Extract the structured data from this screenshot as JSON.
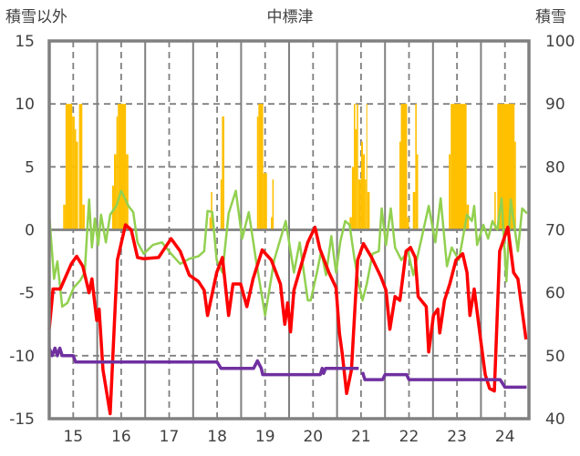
{
  "chart_data": {
    "type": "line",
    "title": "中標津",
    "ylabel": "積雪以外",
    "y2label": "積雪",
    "xlim": [
      14.5,
      24.5
    ],
    "ylim": [
      -15,
      15
    ],
    "y2lim": [
      40,
      100
    ],
    "x_ticks": [
      15,
      16,
      17,
      18,
      19,
      20,
      21,
      22,
      23,
      24
    ],
    "x_tick_labels": [
      "15",
      "16",
      "17",
      "18",
      "19",
      "20",
      "21",
      "22",
      "23",
      "24"
    ],
    "y_ticks": [
      15,
      10,
      5,
      0,
      -5,
      -10,
      -15
    ],
    "y_tick_labels": [
      "15",
      "10",
      "5",
      "0",
      "-5",
      "-10",
      "-15"
    ],
    "y2_ticks": [
      100,
      90,
      80,
      70,
      60,
      50,
      40
    ],
    "y2_tick_labels": [
      "100",
      "90",
      "80",
      "70",
      "60",
      "50",
      "40"
    ],
    "grid": true,
    "colors": {
      "snow": "#FFC000",
      "red": "#FF0000",
      "green": "#92D050",
      "purple": "#7030A0",
      "axis": "#808080"
    },
    "snow_bars_y2": {
      "name": "積雪",
      "baseline": 70,
      "runs": [
        [
          14.79,
          14.84,
          74
        ],
        [
          14.84,
          14.98,
          90
        ],
        [
          14.98,
          15.03,
          88
        ],
        [
          15.03,
          15.06,
          86
        ],
        [
          15.06,
          15.1,
          84
        ],
        [
          15.12,
          15.19,
          90
        ],
        [
          15.19,
          15.24,
          74
        ],
        [
          15.81,
          15.85,
          77
        ],
        [
          15.85,
          15.9,
          82
        ],
        [
          15.9,
          15.93,
          88
        ],
        [
          15.93,
          16.1,
          90
        ],
        [
          16.1,
          16.15,
          82
        ],
        [
          17.84,
          17.87,
          72
        ],
        [
          17.87,
          17.9,
          76
        ],
        [
          18.07,
          18.1,
          78
        ],
        [
          18.1,
          18.15,
          88
        ],
        [
          18.83,
          18.86,
          88
        ],
        [
          18.86,
          18.96,
          90
        ],
        [
          18.96,
          19.04,
          79
        ],
        [
          19.12,
          19.15,
          72
        ],
        [
          19.15,
          19.18,
          78
        ],
        [
          20.76,
          20.81,
          72
        ],
        [
          20.81,
          20.85,
          80
        ],
        [
          20.85,
          20.88,
          90
        ],
        [
          20.88,
          20.91,
          86
        ],
        [
          20.91,
          20.94,
          90
        ],
        [
          20.94,
          21.0,
          78
        ],
        [
          21.0,
          21.04,
          84
        ],
        [
          21.04,
          21.08,
          82
        ],
        [
          21.08,
          21.11,
          78
        ],
        [
          21.11,
          21.13,
          90
        ],
        [
          21.13,
          21.18,
          76
        ],
        [
          21.8,
          21.83,
          84
        ],
        [
          21.83,
          21.96,
          90
        ],
        [
          21.96,
          22.0,
          72
        ],
        [
          22.08,
          22.13,
          76
        ],
        [
          22.13,
          22.16,
          90
        ],
        [
          22.16,
          22.19,
          82
        ],
        [
          22.83,
          22.87,
          82
        ],
        [
          22.87,
          23.2,
          90
        ],
        [
          23.2,
          23.25,
          74
        ],
        [
          23.78,
          23.81,
          76
        ],
        [
          23.84,
          24.2,
          90
        ],
        [
          24.2,
          24.23,
          84
        ]
      ]
    },
    "series": [
      {
        "name": "red",
        "color_key": "red",
        "segments": [
          [
            [
              14.5,
              -7.9
            ],
            [
              14.58,
              -4.7
            ],
            [
              14.73,
              -4.7
            ],
            [
              14.96,
              -2.7
            ],
            [
              15.07,
              -2.1
            ],
            [
              15.2,
              -2.9
            ],
            [
              15.33,
              -5.0
            ],
            [
              15.39,
              -3.9
            ],
            [
              15.49,
              -7.2
            ],
            [
              15.54,
              -6.3
            ],
            [
              15.62,
              -11.1
            ],
            [
              15.77,
              -14.6
            ],
            [
              15.92,
              -2.4
            ],
            [
              16.09,
              0.4
            ],
            [
              16.21,
              0
            ],
            [
              16.34,
              -2.2
            ],
            [
              16.47,
              -2.3
            ],
            [
              16.78,
              -2.2
            ],
            [
              17.04,
              -0.7
            ],
            [
              17.23,
              -1.7
            ],
            [
              17.42,
              -3.6
            ],
            [
              17.61,
              -4.1
            ],
            [
              17.73,
              -4.8
            ],
            [
              17.8,
              -6.8
            ],
            [
              17.99,
              -3.4
            ],
            [
              18.11,
              -2.2
            ],
            [
              18.24,
              -6.8
            ],
            [
              18.33,
              -4.3
            ],
            [
              18.49,
              -4.3
            ],
            [
              18.62,
              -6.1
            ],
            [
              18.75,
              -3.9
            ],
            [
              18.94,
              -1.6
            ],
            [
              19.13,
              -2.4
            ],
            [
              19.32,
              -4.3
            ],
            [
              19.41,
              -7.5
            ],
            [
              19.47,
              -5.8
            ],
            [
              19.53,
              -8.1
            ],
            [
              19.6,
              -4.8
            ],
            [
              19.89,
              -1.0
            ],
            [
              20.04,
              0.2
            ],
            [
              20.14,
              -1.5
            ],
            [
              20.33,
              -3.4
            ],
            [
              20.48,
              -4.6
            ],
            [
              20.55,
              -8.2
            ],
            [
              20.61,
              -9.9
            ],
            [
              20.7,
              -13.0
            ],
            [
              20.8,
              -11.1
            ],
            [
              20.93,
              -2.4
            ],
            [
              21.05,
              -1.1
            ],
            [
              21.22,
              -2.2
            ],
            [
              21.41,
              -3.7
            ],
            [
              21.52,
              -4.8
            ],
            [
              21.6,
              -7.9
            ],
            [
              21.71,
              -5.3
            ],
            [
              21.81,
              -5.6
            ],
            [
              21.94,
              -1.7
            ],
            [
              22.03,
              -1.4
            ],
            [
              22.13,
              -2.2
            ],
            [
              22.19,
              -5.3
            ],
            [
              22.36,
              -6.1
            ],
            [
              22.41,
              -9.7
            ],
            [
              22.51,
              -6.8
            ],
            [
              22.6,
              -6.3
            ],
            [
              22.64,
              -8.2
            ],
            [
              22.74,
              -5.6
            ],
            [
              22.85,
              -4.3
            ],
            [
              22.98,
              -2.4
            ],
            [
              23.12,
              -1.9
            ],
            [
              23.21,
              -3.4
            ],
            [
              23.27,
              -6.8
            ],
            [
              23.36,
              -4.7
            ],
            [
              23.51,
              -9.2
            ],
            [
              23.59,
              -11.5
            ],
            [
              23.68,
              -12.6
            ],
            [
              23.78,
              -12.8
            ],
            [
              23.89,
              -1.7
            ],
            [
              24.06,
              0.2
            ],
            [
              24.18,
              -3.4
            ],
            [
              24.27,
              -3.9
            ],
            [
              24.44,
              -8.7
            ]
          ]
        ]
      },
      {
        "name": "green",
        "color_key": "green",
        "segments": [
          [
            [
              14.5,
              1.2
            ],
            [
              14.6,
              -3.9
            ],
            [
              14.67,
              -2.5
            ],
            [
              14.77,
              -6.1
            ],
            [
              14.88,
              -5.8
            ],
            [
              15.01,
              -4.6
            ],
            [
              15.15,
              -4.0
            ],
            [
              15.24,
              -3.4
            ],
            [
              15.33,
              2.4
            ],
            [
              15.39,
              -1.4
            ],
            [
              15.45,
              0.9
            ],
            [
              15.52,
              -1.2
            ],
            [
              15.58,
              1.2
            ],
            [
              15.68,
              -1.0
            ],
            [
              15.77,
              1.2
            ],
            [
              15.9,
              1.9
            ],
            [
              16.0,
              3.1
            ],
            [
              16.15,
              1.9
            ],
            [
              16.25,
              1.4
            ],
            [
              16.34,
              -1.0
            ],
            [
              16.47,
              -1.9
            ],
            [
              16.66,
              -1.2
            ],
            [
              16.85,
              -1.0
            ],
            [
              17.04,
              -1.9
            ],
            [
              17.23,
              -2.7
            ],
            [
              17.42,
              -2.3
            ],
            [
              17.61,
              -2.1
            ],
            [
              17.73,
              -1.7
            ],
            [
              17.8,
              1.5
            ],
            [
              17.9,
              1.4
            ],
            [
              17.99,
              -2.4
            ],
            [
              18.11,
              -3.4
            ],
            [
              18.24,
              1.3
            ],
            [
              18.39,
              3.1
            ],
            [
              18.52,
              -0.7
            ],
            [
              18.66,
              1.4
            ],
            [
              18.81,
              -2.4
            ],
            [
              19.0,
              -6.8
            ],
            [
              19.19,
              -2.4
            ],
            [
              19.43,
              0.7
            ],
            [
              19.51,
              -1.2
            ],
            [
              19.6,
              -3.4
            ],
            [
              19.72,
              -1.0
            ],
            [
              19.89,
              -5.6
            ],
            [
              19.95,
              -5.6
            ],
            [
              20.08,
              -3.4
            ],
            [
              20.17,
              -1.7
            ],
            [
              20.27,
              -3.6
            ],
            [
              20.38,
              -0.5
            ],
            [
              20.48,
              -3.4
            ],
            [
              20.57,
              -0.9
            ],
            [
              20.67,
              0.7
            ],
            [
              20.76,
              0.4
            ],
            [
              20.86,
              -2.2
            ],
            [
              20.95,
              -4.3
            ],
            [
              21.03,
              -5.6
            ],
            [
              21.12,
              -4.3
            ],
            [
              21.24,
              -1.9
            ],
            [
              21.37,
              -1.7
            ],
            [
              21.43,
              1.7
            ],
            [
              21.52,
              -1.2
            ],
            [
              21.62,
              1.7
            ],
            [
              21.71,
              -1.4
            ],
            [
              21.84,
              -2.4
            ],
            [
              21.98,
              -1.7
            ],
            [
              22.09,
              -3.6
            ],
            [
              22.26,
              -0.7
            ],
            [
              22.41,
              1.9
            ],
            [
              22.55,
              -1.0
            ],
            [
              22.66,
              2.5
            ],
            [
              22.79,
              -2.9
            ],
            [
              22.89,
              -1.4
            ],
            [
              23.04,
              -2.4
            ],
            [
              23.21,
              1.2
            ],
            [
              23.31,
              0.7
            ],
            [
              23.36,
              1.9
            ],
            [
              23.42,
              -1.2
            ],
            [
              23.55,
              0.4
            ],
            [
              23.65,
              -0.7
            ],
            [
              23.74,
              0.7
            ],
            [
              23.84,
              0
            ],
            [
              23.93,
              2.5
            ],
            [
              24.03,
              -4.1
            ],
            [
              24.12,
              2.4
            ],
            [
              24.27,
              -1.7
            ],
            [
              24.36,
              1.7
            ],
            [
              24.46,
              1.3
            ]
          ]
        ]
      },
      {
        "name": "purple",
        "color_key": "purple",
        "segments": [
          [
            [
              14.5,
              -9.4
            ],
            [
              14.56,
              -10.0
            ],
            [
              14.62,
              -9.4
            ],
            [
              14.67,
              -10.0
            ],
            [
              14.72,
              -9.4
            ],
            [
              14.77,
              -10.0
            ],
            [
              15.0,
              -10.0
            ],
            [
              15.05,
              -10.5
            ],
            [
              18.0,
              -10.5
            ],
            [
              18.08,
              -11.0
            ],
            [
              18.76,
              -11.0
            ],
            [
              18.84,
              -10.4
            ],
            [
              18.92,
              -11.0
            ],
            [
              18.95,
              -11.5
            ],
            [
              20.15,
              -11.5
            ],
            [
              20.19,
              -11.0
            ],
            [
              20.22,
              -11.4
            ],
            [
              20.26,
              -11.0
            ],
            [
              20.95,
              -11.0
            ]
          ],
          [
            [
              21.03,
              -11.3
            ],
            [
              21.08,
              -11.9
            ],
            [
              21.45,
              -11.9
            ],
            [
              21.5,
              -11.5
            ],
            [
              21.95,
              -11.5
            ],
            [
              22.0,
              -11.9
            ],
            [
              23.9,
              -11.9
            ],
            [
              24.0,
              -12.5
            ],
            [
              24.45,
              -12.5
            ]
          ]
        ]
      }
    ]
  }
}
